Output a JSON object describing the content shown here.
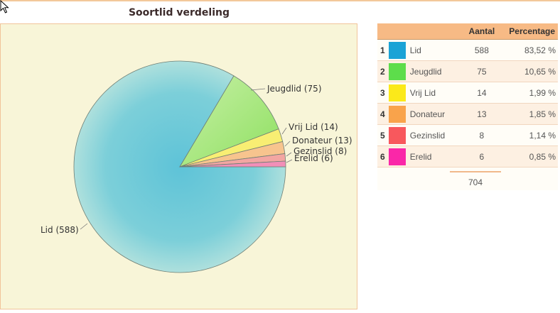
{
  "chart_data": {
    "type": "pie",
    "title": "Soortlid verdeling",
    "categories": [
      "Lid",
      "Jeugdlid",
      "Vrij Lid",
      "Donateur",
      "Gezinslid",
      "Erelid"
    ],
    "values": [
      588,
      75,
      14,
      13,
      8,
      6
    ],
    "slice_labels": [
      "Lid (588)",
      "Jeugdlid (75)",
      "Vrij Lid (14)",
      "Donateur (13)",
      "Gezinslid (8)",
      "Erelid (6)"
    ],
    "colors": [
      "#62c6d9",
      "#a6e67a",
      "#f8ee73",
      "#f7c48e",
      "#f3a6a2",
      "#f28fb8"
    ]
  },
  "table": {
    "headers": {
      "count": "Aantal",
      "percentage": "Percentage"
    },
    "rows": [
      {
        "num": "1",
        "name": "Lid",
        "count": "588",
        "pct": "83,52 %",
        "color": "#1ba3d6"
      },
      {
        "num": "2",
        "name": "Jeugdlid",
        "count": "75",
        "pct": "10,65 %",
        "color": "#5ddd4b"
      },
      {
        "num": "3",
        "name": "Vrij Lid",
        "count": "14",
        "pct": "1,99 %",
        "color": "#fbe91a"
      },
      {
        "num": "4",
        "name": "Donateur",
        "count": "13",
        "pct": "1,85 %",
        "color": "#f9a34b"
      },
      {
        "num": "5",
        "name": "Gezinslid",
        "count": "8",
        "pct": "1,14 %",
        "color": "#f8585d"
      },
      {
        "num": "6",
        "name": "Erelid",
        "count": "6",
        "pct": "0,85 %",
        "color": "#fa27a8"
      }
    ],
    "total": "704"
  }
}
